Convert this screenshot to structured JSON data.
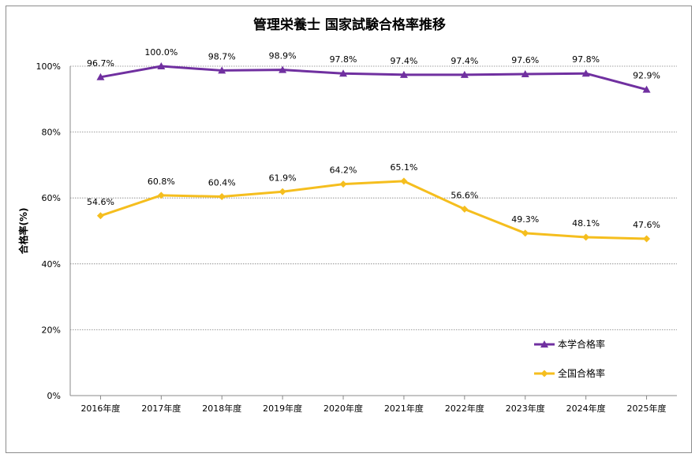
{
  "chart_data": {
    "type": "line",
    "title": "管理栄養士  国家試験合格率推移",
    "xlabel": "",
    "ylabel": "合格率(%)",
    "ylim": [
      0,
      100
    ],
    "yticks": [
      0,
      20,
      40,
      60,
      80,
      100
    ],
    "ytick_labels": [
      "0%",
      "20%",
      "40%",
      "60%",
      "80%",
      "100%"
    ],
    "grid": "horizontal dotted",
    "legend_position": "bottom-right",
    "categories": [
      "2016年度",
      "2017年度",
      "2018年度",
      "2019年度",
      "2020年度",
      "2021年度",
      "2022年度",
      "2023年度",
      "2024年度",
      "2025年度"
    ],
    "series": [
      {
        "name": "本学合格率",
        "color": "#7030a0",
        "marker": "triangle",
        "values": [
          96.7,
          100.0,
          98.7,
          98.9,
          97.8,
          97.4,
          97.4,
          97.6,
          97.8,
          92.9
        ],
        "labels": [
          "96.7%",
          "100.0%",
          "98.7%",
          "98.9%",
          "97.8%",
          "97.4%",
          "97.4%",
          "97.6%",
          "97.8%",
          "92.9%"
        ]
      },
      {
        "name": "全国合格率",
        "color": "#f5be1e",
        "marker": "diamond",
        "values": [
          54.6,
          60.8,
          60.4,
          61.9,
          64.2,
          65.1,
          56.6,
          49.3,
          48.1,
          47.6
        ],
        "labels": [
          "54.6%",
          "60.8%",
          "60.4%",
          "61.9%",
          "64.2%",
          "65.1%",
          "56.6%",
          "49.3%",
          "48.1%",
          "47.6%"
        ]
      }
    ]
  }
}
